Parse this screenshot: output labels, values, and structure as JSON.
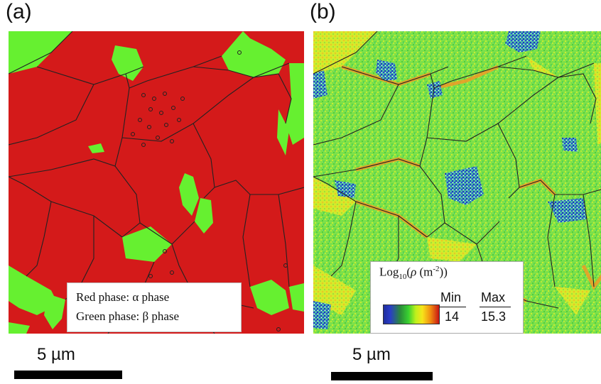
{
  "panels": [
    {
      "label": "(a)"
    },
    {
      "label": "(b)"
    }
  ],
  "legend_a": {
    "line1": "Red phase: α phase",
    "line2": "Green phase: β phase"
  },
  "legend_b": {
    "title_prefix": "Log",
    "title_sub": "10",
    "title_paren": "(",
    "title_rho": "ρ",
    "title_unit_open": " (m",
    "title_unit_sup": "-2",
    "title_unit_close": "))",
    "min_label": "Min",
    "max_label": "Max",
    "min_value": "14",
    "max_value": "15.3"
  },
  "scale_bars": [
    {
      "text": "5 µm"
    },
    {
      "text": "5 µm"
    }
  ],
  "colors": {
    "alpha_phase": "#d41a1a",
    "beta_phase": "#66f030",
    "boundary": "#222222",
    "kam_green": "#6fe24a",
    "kam_blue": "#2238c8",
    "kam_yellow": "#e8e62a",
    "kam_orange": "#f09a26"
  }
}
